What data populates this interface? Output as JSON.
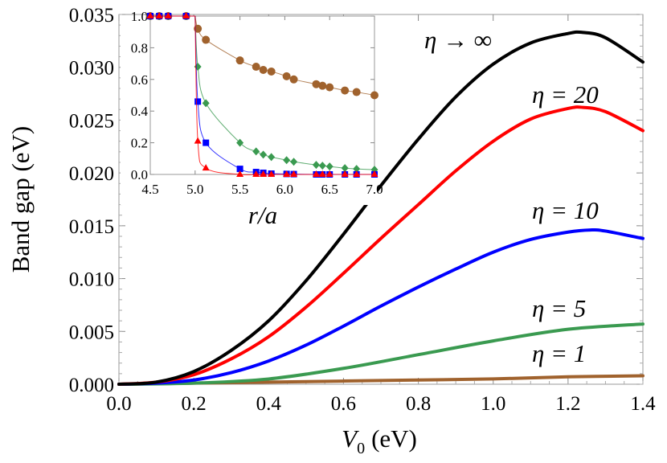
{
  "chart_data": [
    {
      "type": "line",
      "xlabel": "V0 (eV)",
      "xlabel_main": "V",
      "xlabel_sub": "0",
      "xlabel_unit": "(eV)",
      "ylabel": "Band gap (eV)",
      "xlim": [
        0,
        1.4
      ],
      "ylim": [
        0,
        0.035
      ],
      "xticks": [
        "0.0",
        "0.2",
        "0.4",
        "0.6",
        "0.8",
        "1.0",
        "1.2",
        "1.4"
      ],
      "yticks": [
        "0.000",
        "0.005",
        "0.010",
        "0.015",
        "0.020",
        "0.025",
        "0.030",
        "0.035"
      ],
      "grid": false,
      "series": [
        {
          "name": "η → ∞",
          "color": "#000000",
          "x": [
            0,
            0.1,
            0.2,
            0.3,
            0.4,
            0.5,
            0.6,
            0.7,
            0.8,
            0.9,
            1.0,
            1.1,
            1.2,
            1.24,
            1.3,
            1.4
          ],
          "y": [
            0,
            0.0002,
            0.0012,
            0.0032,
            0.006,
            0.0098,
            0.0142,
            0.0188,
            0.0232,
            0.0272,
            0.0303,
            0.0323,
            0.0332,
            0.0333,
            0.0328,
            0.0305
          ]
        },
        {
          "name": "η = 20",
          "color": "#ff0000",
          "x": [
            0,
            0.1,
            0.2,
            0.3,
            0.4,
            0.5,
            0.6,
            0.7,
            0.8,
            0.9,
            1.0,
            1.1,
            1.2,
            1.24,
            1.3,
            1.4
          ],
          "y": [
            0,
            0.0002,
            0.0009,
            0.0024,
            0.0045,
            0.0073,
            0.0105,
            0.0138,
            0.017,
            0.0202,
            0.023,
            0.0251,
            0.0261,
            0.0262,
            0.0258,
            0.024
          ]
        },
        {
          "name": "η = 10",
          "color": "#0000ff",
          "x": [
            0,
            0.1,
            0.2,
            0.3,
            0.4,
            0.5,
            0.6,
            0.7,
            0.8,
            0.9,
            1.0,
            1.1,
            1.2,
            1.26,
            1.3,
            1.4
          ],
          "y": [
            0,
            0.0001,
            0.0004,
            0.0011,
            0.0022,
            0.0037,
            0.0055,
            0.0074,
            0.0092,
            0.0109,
            0.0125,
            0.0137,
            0.0144,
            0.0146,
            0.0145,
            0.0138
          ]
        },
        {
          "name": "η = 5",
          "color": "#3a9a50",
          "x": [
            0,
            0.2,
            0.4,
            0.6,
            0.8,
            1.0,
            1.2,
            1.4
          ],
          "y": [
            0,
            0.0001,
            0.0005,
            0.0015,
            0.0028,
            0.0041,
            0.0052,
            0.0057
          ]
        },
        {
          "name": "η = 1",
          "color": "#a0622d",
          "x": [
            0,
            0.2,
            0.4,
            0.6,
            0.8,
            1.0,
            1.2,
            1.4
          ],
          "y": [
            0,
            0.0001,
            0.0002,
            0.0003,
            0.0004,
            0.0005,
            0.0007,
            0.0008
          ]
        }
      ]
    },
    {
      "type": "scatter",
      "xlabel": "r/a",
      "xlim": [
        4.5,
        7.0
      ],
      "ylim": [
        0,
        1.0
      ],
      "xticks": [
        "4.5",
        "5.0",
        "5.5",
        "6.0",
        "6.5",
        "7.0"
      ],
      "yticks": [
        "0.0",
        "0.2",
        "0.4",
        "0.6",
        "0.8",
        "1.0"
      ],
      "grid": false,
      "series": [
        {
          "marker": "circle",
          "color": "#a0622d",
          "x": [
            4.5,
            4.6,
            4.7,
            4.9,
            5.03,
            5.12,
            5.5,
            5.68,
            5.76,
            5.85,
            6.02,
            6.1,
            6.35,
            6.42,
            6.5,
            6.67,
            6.8,
            7.0
          ],
          "y": [
            1,
            1,
            1,
            1,
            0.92,
            0.85,
            0.72,
            0.68,
            0.66,
            0.65,
            0.62,
            0.6,
            0.57,
            0.56,
            0.55,
            0.53,
            0.52,
            0.5
          ]
        },
        {
          "marker": "diamond",
          "color": "#3a9a50",
          "x": [
            4.5,
            4.6,
            4.7,
            4.9,
            5.03,
            5.12,
            5.5,
            5.68,
            5.76,
            5.85,
            6.02,
            6.1,
            6.35,
            6.42,
            6.5,
            6.67,
            6.8,
            7.0
          ],
          "y": [
            1,
            1,
            1,
            1,
            0.68,
            0.45,
            0.2,
            0.145,
            0.125,
            0.11,
            0.09,
            0.08,
            0.06,
            0.055,
            0.05,
            0.04,
            0.035,
            0.03
          ]
        },
        {
          "marker": "square",
          "color": "#0000ff",
          "x": [
            4.5,
            4.6,
            4.7,
            4.9,
            5.03,
            5.12,
            5.5,
            5.68,
            5.76,
            5.85,
            6.02,
            6.1,
            6.35,
            6.42,
            6.5,
            6.67,
            6.8,
            7.0
          ],
          "y": [
            1,
            1,
            1,
            1,
            0.46,
            0.2,
            0.035,
            0.015,
            0.01,
            0.005,
            0.003,
            0.002,
            0,
            0,
            0,
            0,
            0,
            0
          ]
        },
        {
          "marker": "triangle",
          "color": "#ff0000",
          "x": [
            4.5,
            4.6,
            4.7,
            4.9,
            5.03,
            5.12,
            5.5,
            5.68,
            5.76,
            5.85,
            6.02,
            6.1,
            6.35,
            6.42,
            6.5,
            6.67,
            6.8,
            7.0
          ],
          "y": [
            1,
            1,
            1,
            1,
            0.21,
            0.04,
            0,
            0,
            0,
            0,
            0,
            0,
            0,
            0,
            0,
            0,
            0,
            0
          ]
        }
      ]
    }
  ]
}
